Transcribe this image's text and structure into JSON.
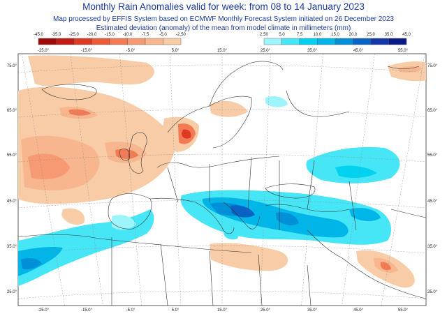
{
  "header": {
    "title": "Monthly Rain Anomalies valid for week: from 08 to 14 January 2023",
    "subtitle": "Map processed by EFFIS System based on ECMWF Monthly Forecast System initiated on 26 December 2023",
    "description": "Estimated deviation (anomaly) of the mean from model climate in millimeters (mm)"
  },
  "legend": {
    "negative": {
      "labels": [
        "-45.0",
        "-35.0",
        "-25.0",
        "-20.0",
        "-15.0",
        "-10.0",
        "-7.5",
        "-5.0",
        "-2.50"
      ],
      "colors": [
        "#9e0a0a",
        "#c01a12",
        "#dc3a22",
        "#ec5a3a",
        "#f27a55",
        "#f59a72",
        "#f7b68e",
        "#f8cca6"
      ]
    },
    "positive": {
      "labels": [
        "2.50",
        "5.0",
        "7.5",
        "10.0",
        "15.0",
        "20.0",
        "25.0",
        "35.0",
        "45.0"
      ],
      "colors": [
        "#9ef4fb",
        "#46e6f6",
        "#00d2f0",
        "#00b5e8",
        "#0090d8",
        "#0a62c4",
        "#1437a8",
        "#0a1a86"
      ]
    }
  },
  "map": {
    "top_longitudes": [
      "-25.0°",
      "-15.0°",
      "-5.0°",
      "5.0°",
      "15.0°",
      "25.0°",
      "35.0°",
      "45.0°",
      "55.0°"
    ],
    "bottom_longitudes": [
      "-25.0°",
      "-15.0°",
      "-5.0°",
      "5.0°",
      "15.0°",
      "25.0°",
      "35.0°",
      "45.0°",
      "55.0°"
    ],
    "left_latitudes": [
      "75.0°",
      "65.0°",
      "55.0°",
      "45.0°",
      "35.0°",
      "25.0°"
    ],
    "right_latitudes": [
      "75.0°",
      "65.0°",
      "55.0°",
      "45.0°",
      "35.0°",
      "25.0°"
    ],
    "colors": {
      "background": "#ffffff",
      "coastline": "#333333",
      "grid": "#888888"
    }
  }
}
